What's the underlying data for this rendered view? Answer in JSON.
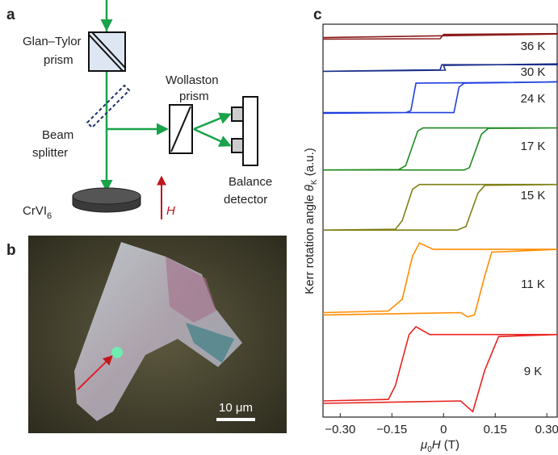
{
  "panel_labels": [
    "a",
    "b",
    "c"
  ],
  "schematic": {
    "polarizer": [
      "Glan–Tylor",
      "prism"
    ],
    "splitter": [
      "Beam",
      "splitter"
    ],
    "wollaston": [
      "Wollaston",
      "prism"
    ],
    "detector": [
      "Balance",
      "detector"
    ],
    "sample": [
      "CrVI",
      "6"
    ],
    "field": "H"
  },
  "micrograph": {
    "scale_bar": "10 μm"
  },
  "chart_data": {
    "type": "line",
    "x_label_parts": [
      "μ",
      "0",
      "H",
      " (T)"
    ],
    "y_label_parts": [
      "Kerr rotation angle ",
      "θ",
      "K",
      " (a.u.)"
    ],
    "xlim": [
      -0.35,
      0.33
    ],
    "ylim": [
      0,
      100
    ],
    "xticks": [
      {
        "value": -0.3,
        "label": "−0.30"
      },
      {
        "value": -0.15,
        "label": "−0.15"
      },
      0,
      0.15,
      {
        "value": 0.3,
        "label": "0.30"
      }
    ],
    "series": [
      {
        "name": "36 K",
        "color": "#8b1a1a",
        "x": [
          -0.35,
          -0.01,
          0.0,
          0.33,
          0.33,
          -0.35
        ],
        "values": [
          96.2,
          96.3,
          97.4,
          97.6,
          97.5,
          96.6
        ]
      },
      {
        "name": "30 K",
        "color": "#1a2f8a",
        "x": [
          -0.35,
          -0.01,
          -0.005,
          0.33,
          0.33,
          0.0,
          0.005,
          -0.35
        ],
        "values": [
          88,
          88.4,
          89.7,
          89.7,
          89.9,
          89.5,
          88.3,
          88
        ]
      },
      {
        "name": "24 K",
        "color": "#1f3fe0",
        "x": [
          -0.35,
          0.03,
          0.045,
          0.06,
          0.33,
          0.33,
          -0.08,
          -0.095,
          -0.11,
          -0.35
        ],
        "values": [
          77.5,
          77.5,
          84,
          85,
          85.3,
          85.3,
          85,
          78,
          77.5,
          77.3
        ]
      },
      {
        "name": "17 K",
        "color": "#1f8a1f",
        "x": [
          -0.35,
          0.06,
          0.075,
          0.11,
          0.13,
          0.33,
          0.33,
          -0.06,
          -0.075,
          -0.11,
          -0.13,
          -0.35
        ],
        "values": [
          62.9,
          62.9,
          63.5,
          72,
          73.5,
          73.6,
          73.6,
          73.6,
          72.8,
          64,
          63,
          62.9
        ]
      },
      {
        "name": "15 K",
        "color": "#7f7f14",
        "x": [
          -0.35,
          0.04,
          0.065,
          0.1,
          0.12,
          0.33,
          0.33,
          -0.07,
          -0.09,
          -0.12,
          -0.14,
          -0.35
        ],
        "values": [
          47.6,
          47.6,
          48.5,
          57,
          59,
          59.2,
          59.2,
          59.2,
          58,
          50,
          47.8,
          47.6
        ]
      },
      {
        "name": "11 K",
        "color": "#ff8c00",
        "x": [
          -0.35,
          0.05,
          0.07,
          0.09,
          0.12,
          0.14,
          0.33,
          0.33,
          -0.03,
          -0.07,
          -0.09,
          -0.12,
          -0.16,
          -0.35
        ],
        "values": [
          26,
          26.6,
          25.5,
          26,
          36,
          42,
          42.7,
          42.7,
          42.7,
          44.3,
          41,
          30,
          27,
          26.6
        ]
      },
      {
        "name": "9 K",
        "color": "#e8231f",
        "x": [
          -0.35,
          0.05,
          0.07,
          0.085,
          0.12,
          0.16,
          0.33,
          0.33,
          -0.04,
          -0.08,
          -0.1,
          -0.14,
          -0.16,
          -0.35
        ],
        "values": [
          3.5,
          4.1,
          2.5,
          1.4,
          12,
          20.5,
          21,
          21,
          21,
          23,
          21,
          8,
          4.5,
          4.1
        ]
      }
    ]
  }
}
